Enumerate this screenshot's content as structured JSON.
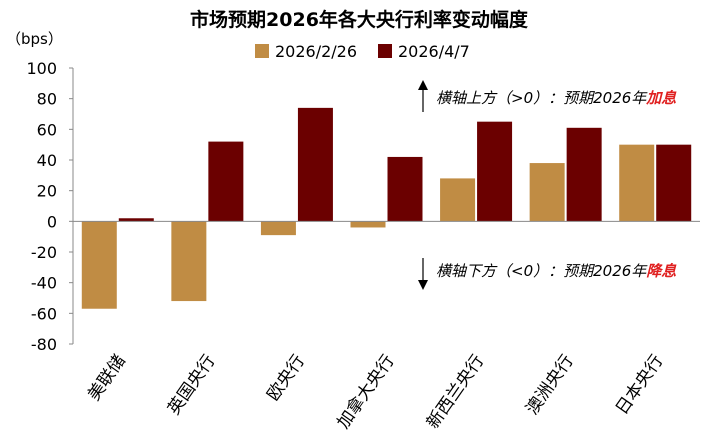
{
  "chart_data": {
    "type": "bar",
    "title": "市场预期2026年各大央行利率变动幅度",
    "ylabel": "（bps）",
    "ylim": [
      -80,
      100
    ],
    "yticks": [
      -80,
      -60,
      -40,
      -20,
      0,
      20,
      40,
      60,
      80,
      100
    ],
    "ytick_labels": [
      "-80",
      "-60",
      "-40",
      "-20",
      "0",
      "20",
      "40",
      "60",
      "80",
      "100"
    ],
    "categories": [
      "美联储",
      "英国央行",
      "欧央行",
      "加拿大央行",
      "新西兰央行",
      "澳洲央行",
      "日本央行"
    ],
    "series": [
      {
        "name": "2026/2/26",
        "color": "#c08c44",
        "values": [
          -57,
          -52,
          -9,
          -4,
          28,
          38,
          50
        ]
      },
      {
        "name": "2026/4/7",
        "color": "#6b0000",
        "values": [
          2,
          52,
          74,
          42,
          65,
          61,
          50
        ]
      }
    ],
    "legend_position": "top-center",
    "annotations": {
      "up": {
        "prefix": "横轴上方（>0）：预期2026年",
        "emphasis": "加息",
        "color": "#e02020"
      },
      "down": {
        "prefix": "横轴下方（<0）：预期2026年",
        "emphasis": "降息",
        "color": "#e02020"
      }
    }
  }
}
